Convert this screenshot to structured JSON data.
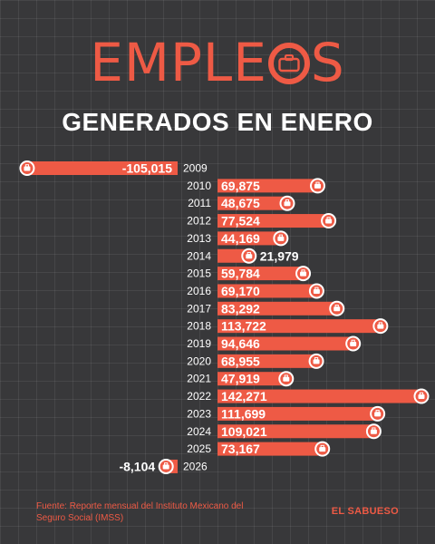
{
  "title": {
    "before": "EMPLE",
    "after": "S",
    "subtitle": "GENERADOS EN ENERO"
  },
  "source": "Fuente: Reporte mensual del Instituto Mexicano del Seguro Social (IMSS)",
  "brand": "EL SABUESO",
  "colors": {
    "background": "#38383a",
    "accent": "#ee5a45",
    "text": "#ffffff"
  },
  "icons": {
    "marker": "briefcase-icon"
  },
  "chart_data": {
    "type": "bar",
    "orientation": "horizontal",
    "grid": true,
    "categories": [
      "2009",
      "2010",
      "2011",
      "2012",
      "2013",
      "2014",
      "2015",
      "2016",
      "2017",
      "2018",
      "2019",
      "2020",
      "2021",
      "2022",
      "2023",
      "2024",
      "2025",
      "2026"
    ],
    "values": [
      -105015,
      69875,
      48675,
      77524,
      44169,
      21979,
      59784,
      69170,
      83292,
      113722,
      94646,
      68955,
      47919,
      142271,
      111699,
      109021,
      73167,
      -8104
    ],
    "labels": [
      "-105,015",
      "69,875",
      "48,675",
      "77,524",
      "44,169",
      "21,979",
      "59,784",
      "69,170",
      "83,292",
      "113,722",
      "94,646",
      "68,955",
      "47,919",
      "142,271",
      "111,699",
      "109,021",
      "73,167",
      "-8,104"
    ]
  }
}
